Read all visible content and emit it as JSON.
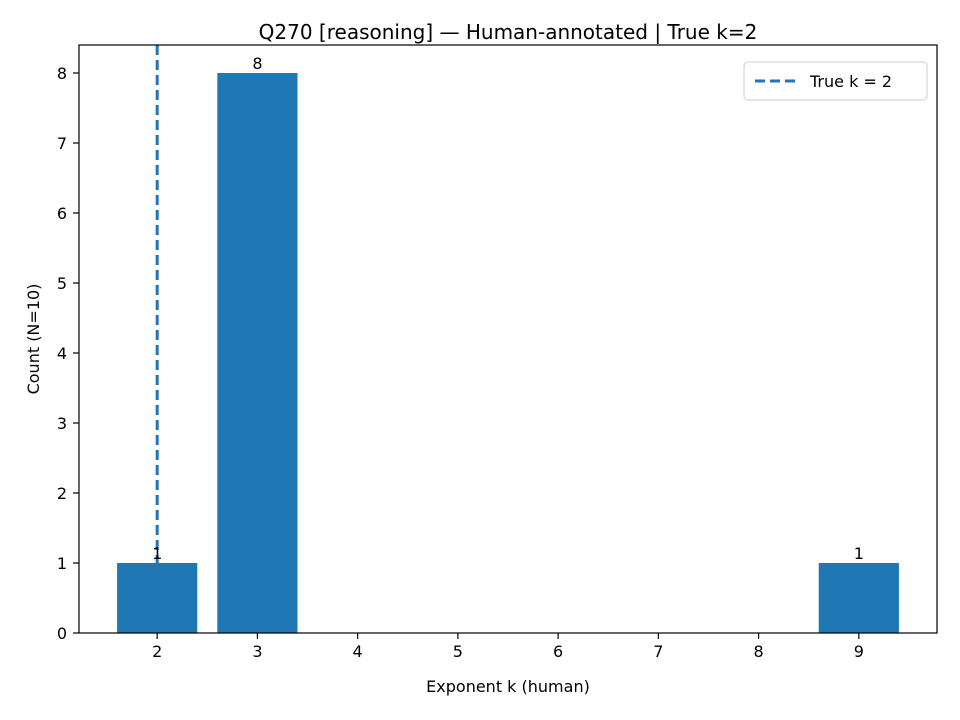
{
  "chart_data": {
    "type": "bar",
    "title": "Q270 [reasoning] — Human-annotated | True k=2",
    "xlabel": "Exponent k (human)",
    "ylabel": "Count (N=10)",
    "x_ticks": [
      2,
      3,
      4,
      5,
      6,
      7,
      8,
      9
    ],
    "y_ticks": [
      0,
      1,
      2,
      3,
      4,
      5,
      6,
      7,
      8
    ],
    "xlim": [
      1.22,
      9.78
    ],
    "ylim": [
      0,
      8.4
    ],
    "bar_width": 0.8,
    "bars": [
      {
        "x": 2,
        "value": 1,
        "label": "1"
      },
      {
        "x": 3,
        "value": 8,
        "label": "8"
      },
      {
        "x": 9,
        "value": 1,
        "label": "1"
      }
    ],
    "bar_color": "#1f77b4",
    "reference_line": {
      "x": 2,
      "style": "dashed",
      "color": "#1f77b4",
      "label": "True k = 2"
    },
    "legend": {
      "position": "top-right",
      "entries": [
        "True k = 2"
      ]
    },
    "grid": false
  }
}
